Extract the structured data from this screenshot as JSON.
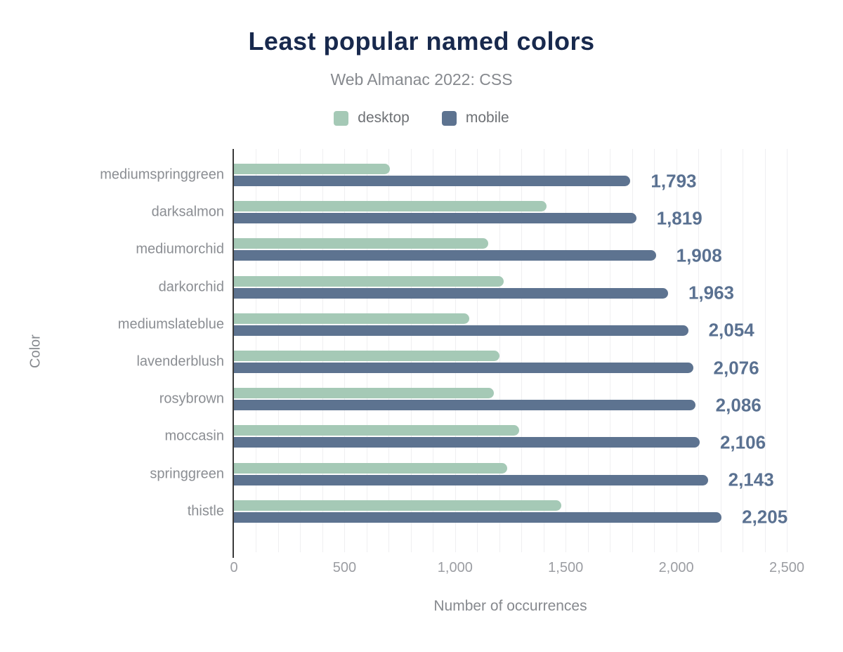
{
  "header": {
    "title": "Least popular named colors",
    "subtitle": "Web Almanac 2022: CSS"
  },
  "axes": {
    "x_title": "Number of occurrences",
    "y_title": "Color"
  },
  "colors": {
    "title_text": "#18294d",
    "subtitle_text": "#86898e",
    "category_label_text": "#8b8e93",
    "tick_label_text": "#9b9da2",
    "value_label_text": "#5a7191",
    "gridline": "#efeff1",
    "axis_line": "#3a3a3a",
    "desktop_bar": "#a5c9b6",
    "mobile_bar": "#5d7390",
    "background": "#ffffff"
  },
  "chart_data": {
    "type": "bar",
    "orientation": "horizontal",
    "title": "Least popular named colors",
    "subtitle": "Web Almanac 2022: CSS",
    "xlabel": "Number of occurrences",
    "ylabel": "Color",
    "xlim": [
      0,
      2500
    ],
    "xticks": [
      0,
      500,
      1000,
      1500,
      2000,
      2500
    ],
    "xtick_labels": [
      "0",
      "500",
      "1,000",
      "1,500",
      "2,000",
      "2,500"
    ],
    "grid": "vertical minor gridlines every 100, no horizontal gridlines",
    "legend_position": "top center",
    "categories": [
      "mediumspringgreen",
      "darksalmon",
      "mediumorchid",
      "darkorchid",
      "mediumslateblue",
      "lavenderblush",
      "rosybrown",
      "moccasin",
      "springgreen",
      "thistle"
    ],
    "series": [
      {
        "name": "desktop",
        "color": "#a5c9b6",
        "values_estimated_from_pixels": true,
        "values": [
          705,
          1415,
          1150,
          1220,
          1065,
          1200,
          1175,
          1290,
          1235,
          1480
        ]
      },
      {
        "name": "mobile",
        "color": "#5d7390",
        "values": [
          1793,
          1819,
          1908,
          1963,
          2054,
          2076,
          2086,
          2106,
          2143,
          2205
        ],
        "data_labels": [
          "1,793",
          "1,819",
          "1,908",
          "1,963",
          "2,054",
          "2,076",
          "2,086",
          "2,106",
          "2,143",
          "2,205"
        ]
      }
    ]
  }
}
